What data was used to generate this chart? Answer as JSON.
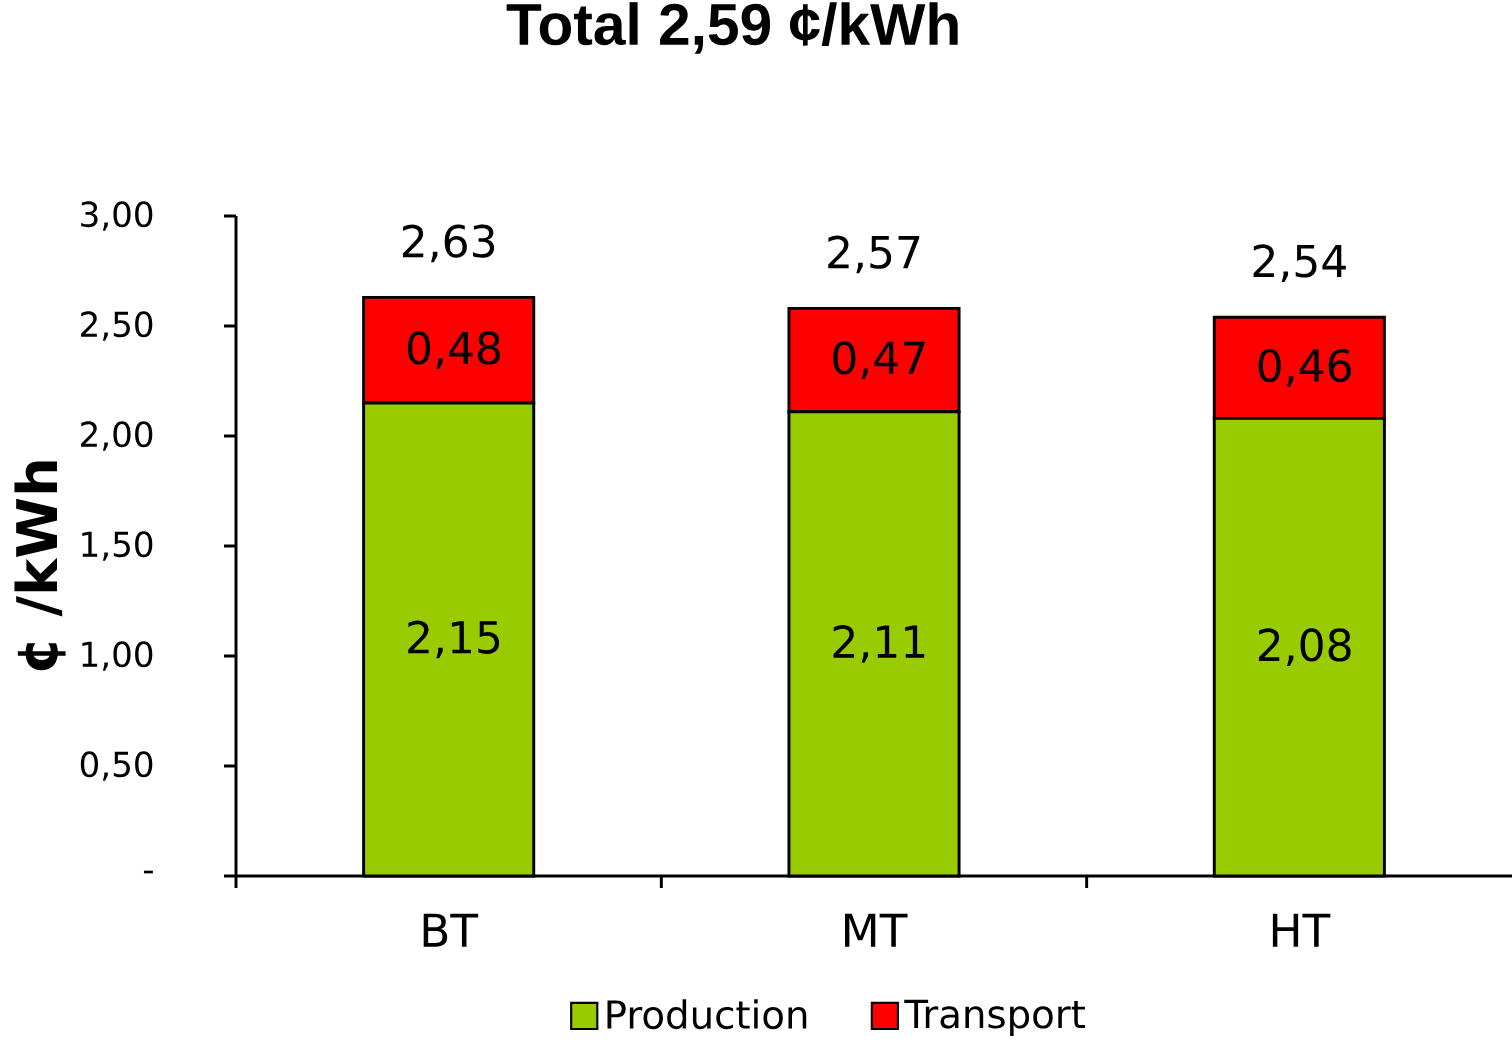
{
  "chart_data": {
    "type": "bar",
    "stacked": true,
    "title": "Total 2,59 ¢/kWh",
    "ylabel": "¢ /kWh",
    "categories": [
      "BT",
      "MT",
      "HT"
    ],
    "series": [
      {
        "name": "Production",
        "color": "#99cc00",
        "values": [
          2.15,
          2.11,
          2.08
        ],
        "value_labels": [
          "2,15",
          "2,11",
          "2,08"
        ]
      },
      {
        "name": "Transport",
        "color": "#ff0000",
        "values": [
          0.48,
          0.47,
          0.46
        ],
        "value_labels": [
          "0,48",
          "0,47",
          "0,46"
        ]
      }
    ],
    "totals": [
      "2,63",
      "2,57",
      "2,54"
    ],
    "ylim": [
      0,
      3
    ],
    "yticks": [
      {
        "value": 0,
        "label": "-"
      },
      {
        "value": 0.5,
        "label": "0,50"
      },
      {
        "value": 1,
        "label": "1,00"
      },
      {
        "value": 1.5,
        "label": "1,50"
      },
      {
        "value": 2,
        "label": "2,00"
      },
      {
        "value": 2.5,
        "label": "2,50"
      },
      {
        "value": 3,
        "label": "3,00"
      }
    ],
    "legend": "bottom"
  }
}
